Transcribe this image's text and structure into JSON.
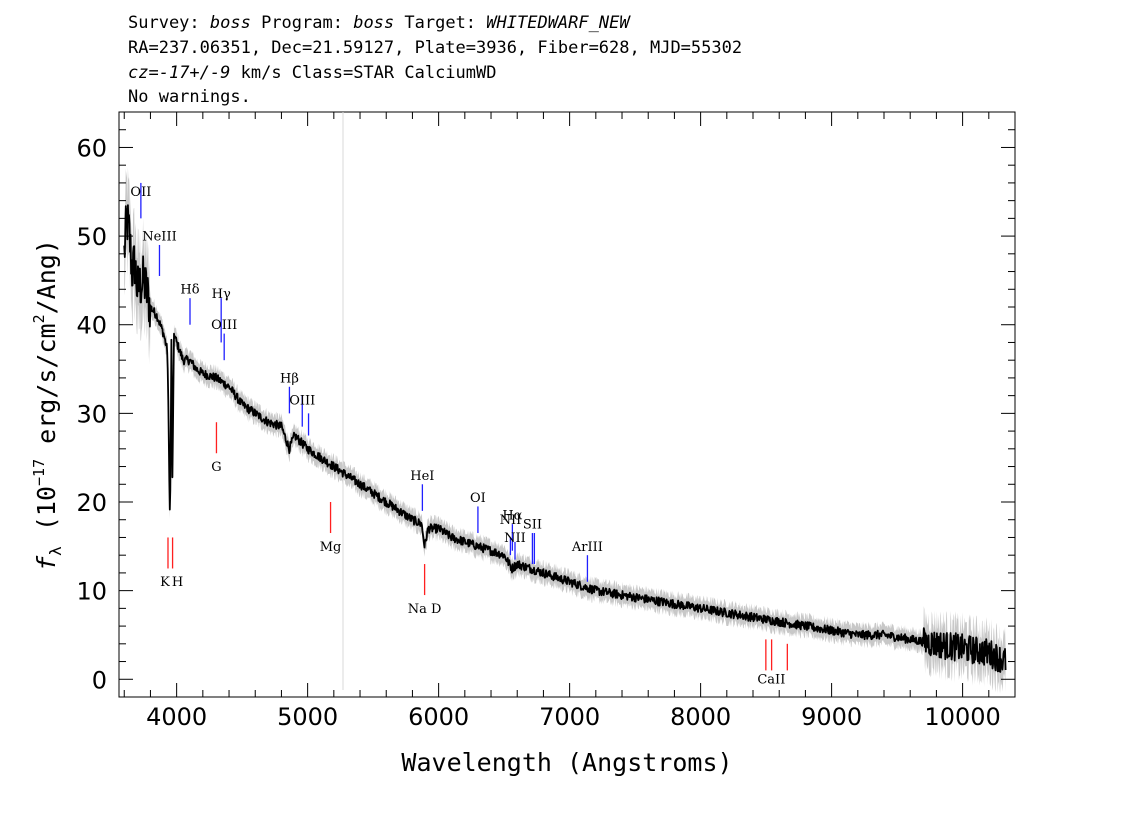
{
  "header": {
    "line1_survey_label": "Survey: ",
    "line1_survey": "boss",
    "line1_program_label": " Program: ",
    "line1_program": "boss",
    "line1_target_label": " Target:  ",
    "line1_target": "WHITEDWARF_NEW",
    "line2": "RA=237.06351, Dec=21.59127, Plate=3936, Fiber=628, MJD=55302",
    "line3_cz_label": "cz=",
    "line3_cz": "-17+/-9",
    "line3_rest": " km/s Class=STAR CalciumWD",
    "line4": "No warnings."
  },
  "chart_data": {
    "type": "line",
    "title": "",
    "xlabel": "Wavelength (Angstroms)",
    "ylabel_prefix": "f",
    "ylabel_sub": "λ",
    "ylabel_mid": " (10",
    "ylabel_exp": "−17",
    "ylabel_mid2": " erg/s/cm",
    "ylabel_exp2": "2",
    "ylabel_end": "/Ang)",
    "xlim": [
      3560,
      10400
    ],
    "ylim": [
      -2,
      64
    ],
    "x_ticks": [
      4000,
      5000,
      6000,
      7000,
      8000,
      9000,
      10000
    ],
    "x_tick_labels": [
      "4000",
      "5000",
      "6000",
      "7000",
      "8000",
      "9000",
      "10000"
    ],
    "y_ticks": [
      0,
      10,
      20,
      30,
      40,
      50,
      60
    ],
    "y_tick_labels": [
      "0",
      "10",
      "20",
      "30",
      "40",
      "50",
      "60"
    ],
    "spectrum_color": "#000000",
    "error_color": "#c8c8c8",
    "emission_color": "#2020ff",
    "absorption_color": "#ff2020",
    "spectrum": {
      "x": [
        3600,
        3620,
        3640,
        3660,
        3680,
        3700,
        3750,
        3800,
        3850,
        3900,
        3930,
        3950,
        3960,
        3968,
        3980,
        4000,
        4050,
        4100,
        4150,
        4200,
        4300,
        4400,
        4500,
        4600,
        4700,
        4800,
        4860,
        4900,
        5000,
        5100,
        5200,
        5300,
        5400,
        5500,
        5600,
        5700,
        5800,
        5870,
        5893,
        5920,
        6000,
        6100,
        6200,
        6300,
        6400,
        6500,
        6560,
        6600,
        6700,
        6800,
        6900,
        7000,
        7200,
        7400,
        7600,
        7800,
        8000,
        8200,
        8400,
        8600,
        8800,
        9000,
        9200,
        9400,
        9600,
        9800,
        10000,
        10200,
        10330
      ],
      "y": [
        48,
        52,
        50,
        46,
        47,
        44,
        45,
        42,
        41,
        39,
        37,
        17,
        38,
        23,
        39,
        38,
        36,
        36,
        35,
        34.5,
        34,
        33,
        31,
        30,
        29,
        28.5,
        26,
        27.5,
        26,
        25,
        24,
        23,
        22,
        21,
        20,
        19,
        18,
        17.5,
        15,
        17,
        17,
        16,
        15.5,
        15,
        14.5,
        14,
        12.5,
        13,
        12.5,
        12,
        11.5,
        11,
        10,
        9.5,
        9,
        8.5,
        8,
        7.5,
        7,
        6.5,
        6,
        5.5,
        5,
        5,
        4.5,
        4,
        3.5,
        3,
        2
      ]
    },
    "lines": [
      {
        "label": "OII",
        "wavelength": 3727,
        "type": "emission",
        "y_from": 52,
        "y_to": 56,
        "label_y": 54.5
      },
      {
        "label": "NeIII",
        "wavelength": 3869,
        "type": "emission",
        "y_from": 45.5,
        "y_to": 49,
        "label_y": 49.5
      },
      {
        "label": "Hδ",
        "wavelength": 4102,
        "type": "emission",
        "y_from": 40,
        "y_to": 43,
        "label_y": 43.5
      },
      {
        "label": "Hγ",
        "wavelength": 4340,
        "type": "emission",
        "y_from": 38,
        "y_to": 43,
        "label_y": 43
      },
      {
        "label": "OIII",
        "wavelength": 4363,
        "type": "emission",
        "y_from": 36,
        "y_to": 39,
        "label_y": 39.5
      },
      {
        "label": "Hβ",
        "wavelength": 4861,
        "type": "emission",
        "y_from": 30,
        "y_to": 33,
        "label_y": 33.5
      },
      {
        "label": "OIII",
        "wavelength": 4959,
        "type": "emission",
        "y_from": 28.5,
        "y_to": 32,
        "label_y": 31
      },
      {
        "label": "OIII",
        "wavelength": 5007,
        "type": "emission",
        "y_from": 27.5,
        "y_to": 30,
        "label_y": 31
      },
      {
        "label": "HeI",
        "wavelength": 5876,
        "type": "emission",
        "y_from": 19,
        "y_to": 22,
        "label_y": 22.5
      },
      {
        "label": "OI",
        "wavelength": 6300,
        "type": "emission",
        "y_from": 16.5,
        "y_to": 19.5,
        "label_y": 20
      },
      {
        "label": "NII",
        "wavelength": 6548,
        "type": "emission",
        "y_from": 14,
        "y_to": 16,
        "label_y": 17.5
      },
      {
        "label": "Hα",
        "wavelength": 6563,
        "type": "emission",
        "y_from": 14.5,
        "y_to": 17.5,
        "label_y": 18
      },
      {
        "label": "NII",
        "wavelength": 6583,
        "type": "emission",
        "y_from": 13.5,
        "y_to": 15.5,
        "label_y": 15.5
      },
      {
        "label": "SII",
        "wavelength": 6716,
        "type": "emission",
        "y_from": 13,
        "y_to": 16.5,
        "label_y": 17
      },
      {
        "label": "SII",
        "wavelength": 6731,
        "type": "emission",
        "y_from": 13,
        "y_to": 16.5,
        "label_y": 17
      },
      {
        "label": "ArIII",
        "wavelength": 7136,
        "type": "emission",
        "y_from": 11,
        "y_to": 14,
        "label_y": 14.5
      },
      {
        "label": "K",
        "wavelength": 3934,
        "type": "absorption",
        "y_from": 12.5,
        "y_to": 16,
        "label_y": 10.5
      },
      {
        "label": "H",
        "wavelength": 3969,
        "type": "absorption",
        "y_from": 12.5,
        "y_to": 16,
        "label_y": 10.5
      },
      {
        "label": "G",
        "wavelength": 4304,
        "type": "absorption",
        "y_from": 25.5,
        "y_to": 29,
        "label_y": 23.5
      },
      {
        "label": "Mg",
        "wavelength": 5175,
        "type": "absorption",
        "y_from": 16.5,
        "y_to": 20,
        "label_y": 14.5
      },
      {
        "label": "Na D",
        "wavelength": 5893,
        "type": "absorption",
        "y_from": 9.5,
        "y_to": 13,
        "label_y": 7.5
      },
      {
        "label": "CaII",
        "wavelength": 8498,
        "type": "absorption",
        "y_from": 1,
        "y_to": 4.5,
        "label_y": -0.5
      },
      {
        "label": "CaII",
        "wavelength": 8542,
        "type": "absorption",
        "y_from": 1,
        "y_to": 4.5,
        "label_y": -0.5
      },
      {
        "label": "CaII",
        "wavelength": 8662,
        "type": "absorption",
        "y_from": 1,
        "y_to": 4,
        "label_y": -0.5
      }
    ]
  }
}
